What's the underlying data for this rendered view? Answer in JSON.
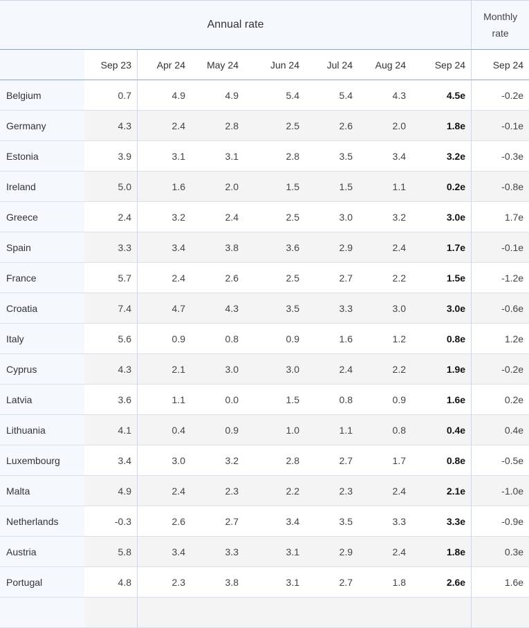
{
  "header": {
    "annual_label": "Annual rate",
    "monthly_label_line1": "Monthly",
    "monthly_label_line2": "rate"
  },
  "columns": [
    "Sep 23",
    "Apr 24",
    "May 24",
    "Jun 24",
    "Jul 24",
    "Aug 24",
    "Sep 24",
    "Sep 24"
  ],
  "rows": [
    {
      "country": "Belgium",
      "values": [
        "0.7",
        "4.9",
        "4.9",
        "5.4",
        "5.4",
        "4.3",
        "4.5e",
        "-0.2e"
      ]
    },
    {
      "country": "Germany",
      "values": [
        "4.3",
        "2.4",
        "2.8",
        "2.5",
        "2.6",
        "2.0",
        "1.8e",
        "-0.1e"
      ]
    },
    {
      "country": "Estonia",
      "values": [
        "3.9",
        "3.1",
        "3.1",
        "2.8",
        "3.5",
        "3.4",
        "3.2e",
        "-0.3e"
      ]
    },
    {
      "country": "Ireland",
      "values": [
        "5.0",
        "1.6",
        "2.0",
        "1.5",
        "1.5",
        "1.1",
        "0.2e",
        "-0.8e"
      ]
    },
    {
      "country": "Greece",
      "values": [
        "2.4",
        "3.2",
        "2.4",
        "2.5",
        "3.0",
        "3.2",
        "3.0e",
        "1.7e"
      ]
    },
    {
      "country": "Spain",
      "values": [
        "3.3",
        "3.4",
        "3.8",
        "3.6",
        "2.9",
        "2.4",
        "1.7e",
        "-0.1e"
      ]
    },
    {
      "country": "France",
      "values": [
        "5.7",
        "2.4",
        "2.6",
        "2.5",
        "2.7",
        "2.2",
        "1.5e",
        "-1.2e"
      ]
    },
    {
      "country": "Croatia",
      "values": [
        "7.4",
        "4.7",
        "4.3",
        "3.5",
        "3.3",
        "3.0",
        "3.0e",
        "-0.6e"
      ]
    },
    {
      "country": "Italy",
      "values": [
        "5.6",
        "0.9",
        "0.8",
        "0.9",
        "1.6",
        "1.2",
        "0.8e",
        "1.2e"
      ]
    },
    {
      "country": "Cyprus",
      "values": [
        "4.3",
        "2.1",
        "3.0",
        "3.0",
        "2.4",
        "2.2",
        "1.9e",
        "-0.2e"
      ]
    },
    {
      "country": "Latvia",
      "values": [
        "3.6",
        "1.1",
        "0.0",
        "1.5",
        "0.8",
        "0.9",
        "1.6e",
        "0.2e"
      ]
    },
    {
      "country": "Lithuania",
      "values": [
        "4.1",
        "0.4",
        "0.9",
        "1.0",
        "1.1",
        "0.8",
        "0.4e",
        "0.4e"
      ]
    },
    {
      "country": "Luxembourg",
      "values": [
        "3.4",
        "3.0",
        "3.2",
        "2.8",
        "2.7",
        "1.7",
        "0.8e",
        "-0.5e"
      ]
    },
    {
      "country": "Malta",
      "values": [
        "4.9",
        "2.4",
        "2.3",
        "2.2",
        "2.3",
        "2.4",
        "2.1e",
        "-1.0e"
      ]
    },
    {
      "country": "Netherlands",
      "values": [
        "-0.3",
        "2.6",
        "2.7",
        "3.4",
        "3.5",
        "3.3",
        "3.3e",
        "-0.9e"
      ]
    },
    {
      "country": "Austria",
      "values": [
        "5.8",
        "3.4",
        "3.3",
        "3.1",
        "2.9",
        "2.4",
        "1.8e",
        "0.3e"
      ]
    },
    {
      "country": "Portugal",
      "values": [
        "4.8",
        "2.3",
        "3.8",
        "3.1",
        "2.7",
        "1.8",
        "2.6e",
        "1.6e"
      ]
    },
    {
      "country": "",
      "values": [
        "",
        "",
        "",
        "",
        "",
        "",
        "",
        ""
      ]
    }
  ]
}
